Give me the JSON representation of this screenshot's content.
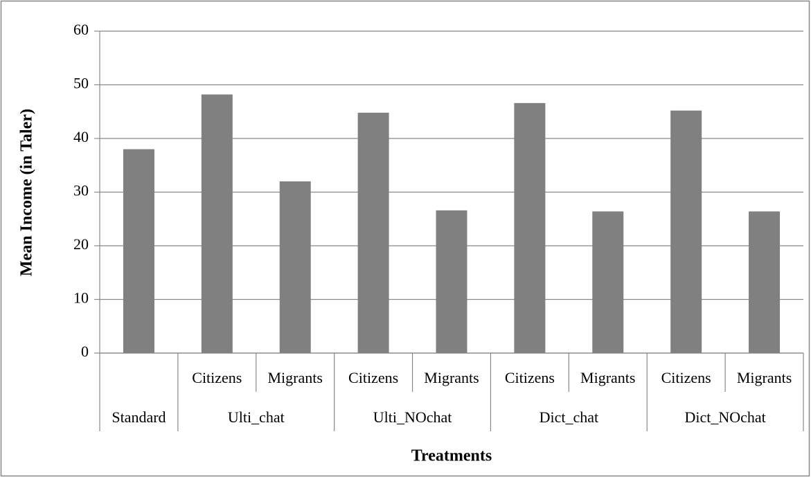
{
  "chart_data": {
    "type": "bar",
    "y_label": "Mean Income (in Taler)",
    "x_label": "Treatments",
    "categories": [
      [
        "Standard",
        null
      ],
      [
        "Ulti_chat",
        "Citizens"
      ],
      [
        "Ulti_chat",
        "Migrants"
      ],
      [
        "Ulti_NOchat",
        "Citizens"
      ],
      [
        "Ulti_NOchat",
        "Migrants"
      ],
      [
        "Dict_chat",
        "Citizens"
      ],
      [
        "Dict_chat",
        "Migrants"
      ],
      [
        "Dict_NOchat",
        "Citizens"
      ],
      [
        "Dict_NOchat",
        "Migrants"
      ]
    ],
    "values": [
      38,
      48.2,
      32,
      44.8,
      26.6,
      46.6,
      26.4,
      45.2,
      26.4
    ],
    "color": "#808080",
    "ylim": [
      0,
      60
    ],
    "yticks": [
      0,
      10,
      20,
      30,
      40,
      50,
      60
    ],
    "grid": true
  }
}
